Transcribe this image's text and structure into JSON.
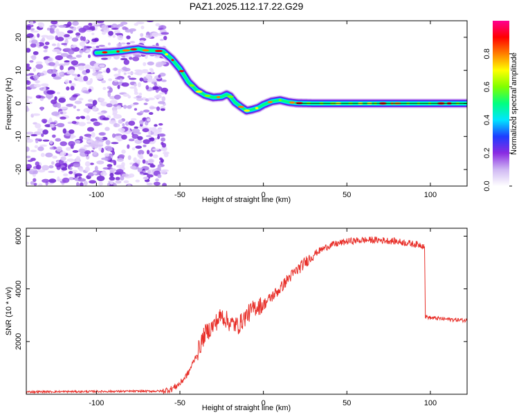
{
  "title": "PAZ1.2025.112.17.22.G29",
  "chart_data": [
    {
      "type": "heatmap",
      "xlabel": "Height of straight line (km)",
      "ylabel": "Frequency (Hz)",
      "xlim": [
        -142,
        122
      ],
      "ylim": [
        -25,
        25
      ],
      "xticks": [
        -100,
        -50,
        0,
        50,
        100
      ],
      "yticks": [
        -20,
        -10,
        0,
        10,
        20
      ],
      "colorbar": {
        "label": "Normalized spectral amplitude",
        "range": [
          0,
          1
        ],
        "ticks": [
          "0.0",
          "0.2",
          "0.4",
          "0.6",
          "0.8"
        ],
        "colors": [
          "#ffffff",
          "#cfb8f3",
          "#8a2be2",
          "#1e3cff",
          "#00e5ff",
          "#00ff80",
          "#80ff00",
          "#ffff00",
          "#ff8000",
          "#ff0000",
          "#ff0090"
        ]
      },
      "ridge": {
        "height_km": [
          -100,
          -92,
          -85,
          -80,
          -75,
          -70,
          -65,
          -60,
          -55,
          -50,
          -45,
          -40,
          -35,
          -30,
          -25,
          -22,
          -20,
          -17,
          -13,
          -10,
          -7,
          -3,
          0,
          5,
          10,
          15,
          20,
          30,
          40,
          60,
          80,
          100,
          122
        ],
        "frequency_hz": [
          15.3,
          15.5,
          15.8,
          16.2,
          16.5,
          16.0,
          16.0,
          15.7,
          13.5,
          10.5,
          6.5,
          4.0,
          2.5,
          1.8,
          2.0,
          2.7,
          2.2,
          0.3,
          -1.2,
          -2.2,
          -1.9,
          -1.3,
          -0.4,
          0.6,
          1.0,
          0.4,
          0.1,
          0.0,
          0.0,
          0.0,
          0.0,
          0.0,
          0.0
        ]
      },
      "noise_region_km": [
        -142,
        -58
      ]
    },
    {
      "type": "line",
      "xlabel": "Height of straight line (km)",
      "ylabel": "SNR (10 * v/v)",
      "xlim": [
        -142,
        122
      ],
      "ylim": [
        0,
        6300
      ],
      "xticks": [
        -100,
        -50,
        0,
        50,
        100
      ],
      "yticks": [
        2000,
        4000,
        6000
      ],
      "color": "#e8302a",
      "trend": {
        "height_km": [
          -142,
          -60,
          -55,
          -50,
          -45,
          -40,
          -35,
          -30,
          -25,
          -20,
          -15,
          -10,
          -5,
          0,
          5,
          10,
          15,
          20,
          25,
          30,
          35,
          40,
          50,
          60,
          70,
          80,
          90,
          96.5,
          97,
          100,
          110,
          122
        ],
        "snr": [
          90,
          120,
          200,
          400,
          800,
          1500,
          2300,
          2600,
          3000,
          2700,
          2600,
          3000,
          3300,
          3400,
          3700,
          4000,
          4400,
          4700,
          5000,
          5300,
          5500,
          5650,
          5800,
          5850,
          5850,
          5800,
          5700,
          5650,
          2950,
          2900,
          2850,
          2800
        ]
      }
    }
  ]
}
